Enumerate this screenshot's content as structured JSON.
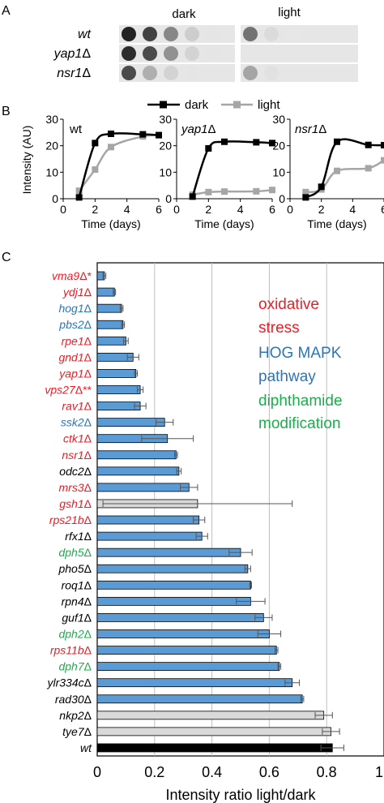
{
  "panel_a": {
    "label": "A",
    "conditions": [
      "dark",
      "light"
    ],
    "strains": [
      {
        "name": "wt",
        "dark": [
          1.0,
          0.85,
          0.5,
          0.15,
          0.03
        ],
        "light": [
          0.6,
          0.08,
          0.02,
          0.0,
          0.0
        ]
      },
      {
        "name": "yap1Δ",
        "dark": [
          0.95,
          0.8,
          0.45,
          0.12,
          0.03
        ],
        "light": [
          0.0,
          0.0,
          0.0,
          0.0,
          0.0
        ]
      },
      {
        "name": "nsr1Δ",
        "dark": [
          0.8,
          0.3,
          0.12,
          0.03,
          0.0
        ],
        "light": [
          0.35,
          0.05,
          0.0,
          0.0,
          0.0
        ]
      }
    ]
  },
  "panel_b": {
    "label": "B",
    "legend": [
      "dark",
      "light"
    ],
    "ylabel": "Intensity (AU)",
    "xlabel": "Time (days)",
    "xticks": [
      0,
      2,
      4,
      6
    ],
    "yticks": [
      0,
      10,
      20,
      30
    ],
    "colors": {
      "dark": "#000000",
      "light": "#a6a6a6"
    }
  },
  "panel_c": {
    "label": "C",
    "xlabel": "Intensity ratio light/dark",
    "xticks": [
      "0",
      "0.2",
      "0.4",
      "0.6",
      "0.8",
      "1"
    ],
    "legend": [
      {
        "text": "oxidative",
        "color": "#ee1c25"
      },
      {
        "text": "stress",
        "color": "#ee1c25"
      },
      {
        "text": "HOG MAPK",
        "color": "#2e75b6"
      },
      {
        "text": "pathway",
        "color": "#2e75b6"
      },
      {
        "text": "diphthamide",
        "color": "#1aaf4b"
      },
      {
        "text": "modification",
        "color": "#1aaf4b"
      }
    ]
  },
  "chart_data": [
    {
      "type": "line",
      "title": "wt",
      "xlabel": "Time (days)",
      "ylabel": "Intensity (AU)",
      "xlim": [
        0,
        6
      ],
      "ylim": [
        0,
        30
      ],
      "series": [
        {
          "name": "dark",
          "x": [
            1,
            2,
            3,
            5,
            6
          ],
          "y": [
            0.5,
            21,
            24.5,
            24.3,
            24
          ]
        },
        {
          "name": "light",
          "x": [
            1,
            2,
            3,
            5,
            6
          ],
          "y": [
            3,
            11,
            19.5,
            23.5,
            24
          ]
        }
      ]
    },
    {
      "type": "line",
      "title": "yap1Δ",
      "xlabel": "Time (days)",
      "xlim": [
        0,
        6
      ],
      "ylim": [
        0,
        30
      ],
      "series": [
        {
          "name": "dark",
          "x": [
            1,
            2,
            3,
            5,
            6
          ],
          "y": [
            0.8,
            19,
            21.5,
            21.3,
            21
          ]
        },
        {
          "name": "light",
          "x": [
            1,
            2,
            3,
            5,
            6
          ],
          "y": [
            1.5,
            2.5,
            2.7,
            2.8,
            3.3
          ]
        }
      ]
    },
    {
      "type": "line",
      "title": "nsr1Δ",
      "xlabel": "Time (days)",
      "xlim": [
        0,
        6
      ],
      "ylim": [
        0,
        30
      ],
      "series": [
        {
          "name": "dark",
          "x": [
            1,
            2,
            3,
            5,
            6
          ],
          "y": [
            0.5,
            4.5,
            21.5,
            20.3,
            20.2
          ]
        },
        {
          "name": "light",
          "x": [
            1,
            2,
            3,
            5,
            6
          ],
          "y": [
            2.5,
            3.5,
            10.5,
            11.5,
            14.5
          ]
        }
      ]
    },
    {
      "type": "bar",
      "orientation": "horizontal",
      "xlabel": "Intensity ratio light/dark",
      "xlim": [
        0,
        1
      ],
      "grid": true,
      "categories": [
        "vma9Δ*",
        "ydj1Δ",
        "hog1Δ",
        "pbs2Δ",
        "rpe1Δ",
        "gnd1Δ",
        "yap1Δ",
        "vps27Δ**",
        "rav1Δ",
        "ssk2Δ",
        "ctk1Δ",
        "nsr1Δ",
        "odc2Δ",
        "mrs3Δ",
        "gsh1Δ",
        "rps21bΔ",
        "rfx1Δ",
        "dph5Δ",
        "pho5Δ",
        "roq1Δ",
        "rpn4Δ",
        "guf1Δ",
        "dph2Δ",
        "rps11bΔ",
        "dph7Δ",
        "ylr334cΔ",
        "rad30Δ",
        "nkp2Δ",
        "tye7Δ",
        "wt"
      ],
      "label_colors": [
        "#ee1c25",
        "#ee1c25",
        "#2e75b6",
        "#2e75b6",
        "#ee1c25",
        "#ee1c25",
        "#ee1c25",
        "#ee1c25",
        "#ee1c25",
        "#2e75b6",
        "#ee1c25",
        "#ee1c25",
        "#000000",
        "#ee1c25",
        "#ee1c25",
        "#ee1c25",
        "#000000",
        "#1aaf4b",
        "#000000",
        "#000000",
        "#000000",
        "#000000",
        "#1aaf4b",
        "#ee1c25",
        "#1aaf4b",
        "#000000",
        "#000000",
        "#000000",
        "#000000",
        "#000000"
      ],
      "bar_colors": [
        "#5b9bd5",
        "#5b9bd5",
        "#5b9bd5",
        "#5b9bd5",
        "#5b9bd5",
        "#5b9bd5",
        "#5b9bd5",
        "#5b9bd5",
        "#5b9bd5",
        "#5b9bd5",
        "#5b9bd5",
        "#5b9bd5",
        "#5b9bd5",
        "#5b9bd5",
        "#d9d9d9",
        "#5b9bd5",
        "#5b9bd5",
        "#5b9bd5",
        "#5b9bd5",
        "#5b9bd5",
        "#5b9bd5",
        "#5b9bd5",
        "#5b9bd5",
        "#5b9bd5",
        "#5b9bd5",
        "#5b9bd5",
        "#5b9bd5",
        "#d9d9d9",
        "#d9d9d9",
        "#000000"
      ],
      "values": [
        0.025,
        0.06,
        0.085,
        0.09,
        0.1,
        0.125,
        0.135,
        0.15,
        0.15,
        0.235,
        0.245,
        0.275,
        0.285,
        0.32,
        0.35,
        0.355,
        0.365,
        0.5,
        0.525,
        0.535,
        0.535,
        0.58,
        0.6,
        0.625,
        0.635,
        0.68,
        0.715,
        0.79,
        0.815,
        0.82
      ],
      "errors": [
        0.005,
        0.004,
        0.005,
        0.005,
        0.008,
        0.02,
        0.005,
        0.01,
        0.02,
        0.03,
        0.09,
        0.005,
        0.008,
        0.03,
        0.33,
        0.02,
        0.02,
        0.04,
        0.01,
        0.003,
        0.05,
        0.03,
        0.04,
        0.005,
        0.005,
        0.025,
        0.005,
        0.03,
        0.03,
        0.04
      ]
    }
  ]
}
